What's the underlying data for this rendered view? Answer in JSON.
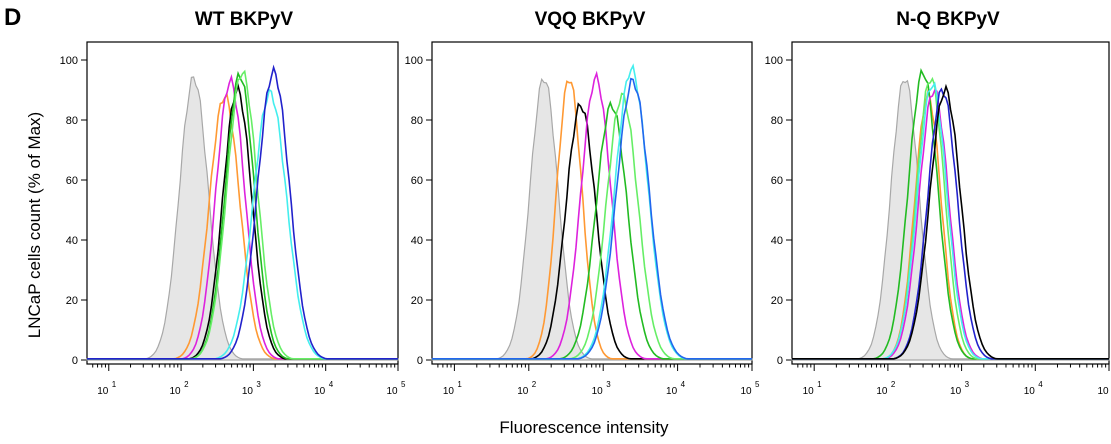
{
  "panel_letter": "D",
  "ylabel": "LNCaP cells count (% of Max)",
  "xlabel": "Fluorescence intensity",
  "chart_data": [
    {
      "type": "line",
      "title": "WT BKPyV",
      "xscale": "log",
      "xlim": [
        5,
        100000
      ],
      "ylim": [
        0,
        100
      ],
      "yticks": [
        0,
        20,
        40,
        60,
        80,
        100
      ],
      "xticks": [
        10,
        100,
        1000,
        10000,
        100000
      ],
      "series": [
        {
          "kind": "control",
          "color": "#a8a8a8",
          "fill": "#e6e6e6",
          "peak_x": 150,
          "peak_y": 94,
          "width": 0.2
        },
        {
          "color": "#ff9933",
          "peak_x": 400,
          "peak_y": 88,
          "width": 0.21
        },
        {
          "color": "#dd22dd",
          "peak_x": 480,
          "peak_y": 93,
          "width": 0.2
        },
        {
          "color": "#000000",
          "peak_x": 600,
          "peak_y": 90,
          "width": 0.2
        },
        {
          "color": "#22bb22",
          "peak_x": 650,
          "peak_y": 95,
          "width": 0.2
        },
        {
          "color": "#66ee66",
          "peak_x": 700,
          "peak_y": 96,
          "width": 0.21
        },
        {
          "color": "#44eeee",
          "peak_x": 1700,
          "peak_y": 89,
          "width": 0.23
        },
        {
          "color": "#2222cc",
          "peak_x": 1900,
          "peak_y": 96,
          "width": 0.22
        }
      ]
    },
    {
      "type": "line",
      "title": "VQQ BKPyV",
      "xscale": "log",
      "xlim": [
        5,
        100000
      ],
      "ylim": [
        0,
        100
      ],
      "yticks": [
        0,
        20,
        40,
        60,
        80,
        100
      ],
      "xticks": [
        10,
        100,
        1000,
        10000,
        100000
      ],
      "series": [
        {
          "kind": "control",
          "color": "#a8a8a8",
          "fill": "#e6e6e6",
          "peak_x": 160,
          "peak_y": 94,
          "width": 0.19
        },
        {
          "color": "#ff9933",
          "peak_x": 350,
          "peak_y": 94,
          "width": 0.17
        },
        {
          "color": "#000000",
          "peak_x": 500,
          "peak_y": 85,
          "width": 0.2
        },
        {
          "color": "#dd22dd",
          "peak_x": 800,
          "peak_y": 94,
          "width": 0.2
        },
        {
          "color": "#22bb22",
          "peak_x": 1300,
          "peak_y": 85,
          "width": 0.21
        },
        {
          "color": "#66ee66",
          "peak_x": 1800,
          "peak_y": 88,
          "width": 0.21
        },
        {
          "color": "#44eeee",
          "peak_x": 2400,
          "peak_y": 97,
          "width": 0.22
        },
        {
          "color": "#2266ee",
          "peak_x": 2500,
          "peak_y": 93,
          "width": 0.22
        }
      ]
    },
    {
      "type": "line",
      "title": "N-Q BKPyV",
      "xscale": "log",
      "xlim": [
        5,
        100000
      ],
      "ylim": [
        0,
        100
      ],
      "yticks": [
        0,
        20,
        40,
        60,
        80,
        100
      ],
      "xticks": [
        10,
        100,
        1000,
        10000,
        100000
      ],
      "series": [
        {
          "kind": "control",
          "color": "#a8a8a8",
          "fill": "#e6e6e6",
          "peak_x": 170,
          "peak_y": 94,
          "width": 0.19
        },
        {
          "color": "#ff9933",
          "peak_x": 350,
          "peak_y": 88,
          "width": 0.18
        },
        {
          "color": "#22bb22",
          "peak_x": 300,
          "peak_y": 96,
          "width": 0.2
        },
        {
          "color": "#66ee66",
          "peak_x": 380,
          "peak_y": 94,
          "width": 0.19
        },
        {
          "color": "#dd22dd",
          "peak_x": 420,
          "peak_y": 90,
          "width": 0.2
        },
        {
          "color": "#44eeee",
          "peak_x": 400,
          "peak_y": 92,
          "width": 0.2
        },
        {
          "color": "#2222cc",
          "peak_x": 550,
          "peak_y": 90,
          "width": 0.2
        },
        {
          "color": "#000000",
          "peak_x": 600,
          "peak_y": 90,
          "width": 0.21
        }
      ]
    }
  ]
}
